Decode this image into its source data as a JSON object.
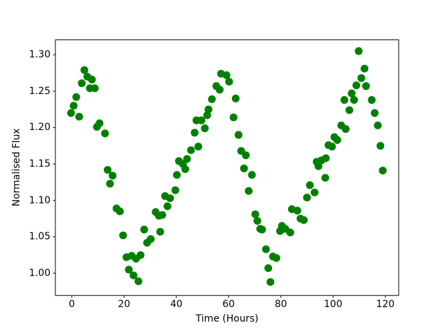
{
  "figure": {
    "background_color": "#ffffff",
    "axis_color": "#000000"
  },
  "chart_data": {
    "type": "scatter",
    "title": "",
    "xlabel": "Time (Hours)",
    "ylabel": "Normalised Flux",
    "marker": "o",
    "marker_color": "#008000",
    "marker_radius_px": 5.6,
    "grid": false,
    "legend": null,
    "xlim": [
      -6.3,
      125.1
    ],
    "ylim": [
      0.9695,
      1.3205
    ],
    "x_ticks": [
      0,
      20,
      40,
      60,
      80,
      100,
      120
    ],
    "x_tick_labels": [
      "0",
      "20",
      "40",
      "60",
      "80",
      "100",
      "120"
    ],
    "y_ticks": [
      1.0,
      1.05,
      1.1,
      1.15,
      1.2,
      1.25,
      1.3
    ],
    "y_tick_labels": [
      "1.00",
      "1.05",
      "1.10",
      "1.15",
      "1.20",
      "1.25",
      "1.30"
    ],
    "series": [
      {
        "name": "normalised-flux",
        "x": [
          -0.3,
          0.7,
          1.7,
          2.8,
          3.8,
          4.8,
          5.9,
          6.9,
          7.7,
          8.8,
          9.6,
          10.6,
          12.7,
          13.7,
          14.6,
          15.6,
          17.1,
          18.4,
          19.6,
          20.9,
          21.8,
          22.9,
          23.6,
          24.6,
          25.5,
          26.3,
          27.7,
          28.8,
          30.2,
          32.1,
          33.3,
          33.8,
          34.6,
          35.7,
          36.6,
          37.6,
          39.6,
          40.2,
          41.0,
          42.5,
          43.4,
          44.1,
          45.6,
          47.0,
          47.7,
          48.4,
          49.6,
          50.9,
          51.8,
          52.3,
          53.6,
          55.3,
          56.6,
          57.1,
          59.2,
          60.2,
          61.9,
          62.7,
          63.8,
          64.8,
          65.9,
          66.6,
          67.7,
          68.9,
          70.2,
          71.0,
          72.1,
          72.8,
          74.3,
          75.2,
          76.0,
          77.0,
          78.3,
          79.7,
          80.4,
          81.7,
          83.6,
          84.2,
          86.3,
          87.5,
          88.8,
          90.0,
          91.1,
          92.9,
          93.7,
          94.4,
          95.5,
          97.0,
          97.2,
          98.2,
          99.6,
          100.5,
          101.6,
          103.1,
          104.3,
          104.8,
          106.2,
          107.1,
          108.0,
          108.9,
          109.8,
          110.8,
          112.0,
          112.6,
          114.8,
          115.9,
          117.1,
          118.1,
          119.0
        ],
        "y": [
          1.22,
          1.23,
          1.242,
          1.215,
          1.261,
          1.279,
          1.27,
          1.254,
          1.266,
          1.254,
          1.201,
          1.206,
          1.192,
          1.142,
          1.123,
          1.134,
          1.089,
          1.085,
          1.052,
          1.022,
          1.005,
          1.024,
          0.997,
          1.02,
          0.989,
          1.025,
          1.06,
          1.042,
          1.047,
          1.084,
          1.079,
          1.057,
          1.08,
          1.106,
          1.092,
          1.103,
          1.114,
          1.135,
          1.154,
          1.15,
          1.143,
          1.157,
          1.169,
          1.193,
          1.21,
          1.174,
          1.21,
          1.199,
          1.217,
          1.225,
          1.239,
          1.257,
          1.252,
          1.274,
          1.272,
          1.263,
          1.214,
          1.24,
          1.19,
          1.168,
          1.144,
          1.162,
          1.113,
          1.135,
          1.081,
          1.072,
          1.061,
          1.06,
          1.033,
          1.007,
          0.988,
          1.023,
          1.021,
          1.058,
          1.065,
          1.061,
          1.056,
          1.088,
          1.086,
          1.075,
          1.073,
          1.104,
          1.121,
          1.111,
          1.153,
          1.147,
          1.155,
          1.131,
          1.158,
          1.176,
          1.174,
          1.187,
          1.183,
          1.203,
          1.238,
          1.198,
          1.224,
          1.247,
          1.238,
          1.258,
          1.305,
          1.268,
          1.281,
          1.257,
          1.238,
          1.22,
          1.203,
          1.175,
          1.141
        ]
      }
    ]
  }
}
